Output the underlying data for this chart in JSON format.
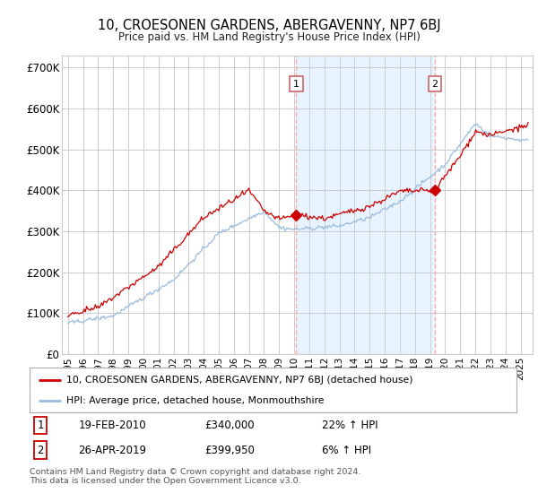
{
  "title": "10, CROESONEN GARDENS, ABERGAVENNY, NP7 6BJ",
  "subtitle": "Price paid vs. HM Land Registry's House Price Index (HPI)",
  "ylabel_ticks": [
    "£0",
    "£100K",
    "£200K",
    "£300K",
    "£400K",
    "£500K",
    "£600K",
    "£700K"
  ],
  "ytick_values": [
    0,
    100000,
    200000,
    300000,
    400000,
    500000,
    600000,
    700000
  ],
  "ylim": [
    0,
    730000
  ],
  "xlim_start": 1994.6,
  "xlim_end": 2025.8,
  "sale1_date": 2010.12,
  "sale1_price": 340000,
  "sale1_label": "1",
  "sale2_date": 2019.32,
  "sale2_price": 399950,
  "sale2_label": "2",
  "legend_line1": "10, CROESONEN GARDENS, ABERGAVENNY, NP7 6BJ (detached house)",
  "legend_line2": "HPI: Average price, detached house, Monmouthshire",
  "ann1_date": "19-FEB-2010",
  "ann1_price": "£340,000",
  "ann1_hpi": "22% ↑ HPI",
  "ann2_date": "26-APR-2019",
  "ann2_price": "£399,950",
  "ann2_hpi": "6% ↑ HPI",
  "footer": "Contains HM Land Registry data © Crown copyright and database right 2024.\nThis data is licensed under the Open Government Licence v3.0.",
  "color_red": "#cc0000",
  "color_blue": "#99bbdd",
  "color_fill": "#ddeeff",
  "color_dashed": "#ffaaaa",
  "background_color": "#ffffff",
  "grid_color": "#cccccc"
}
